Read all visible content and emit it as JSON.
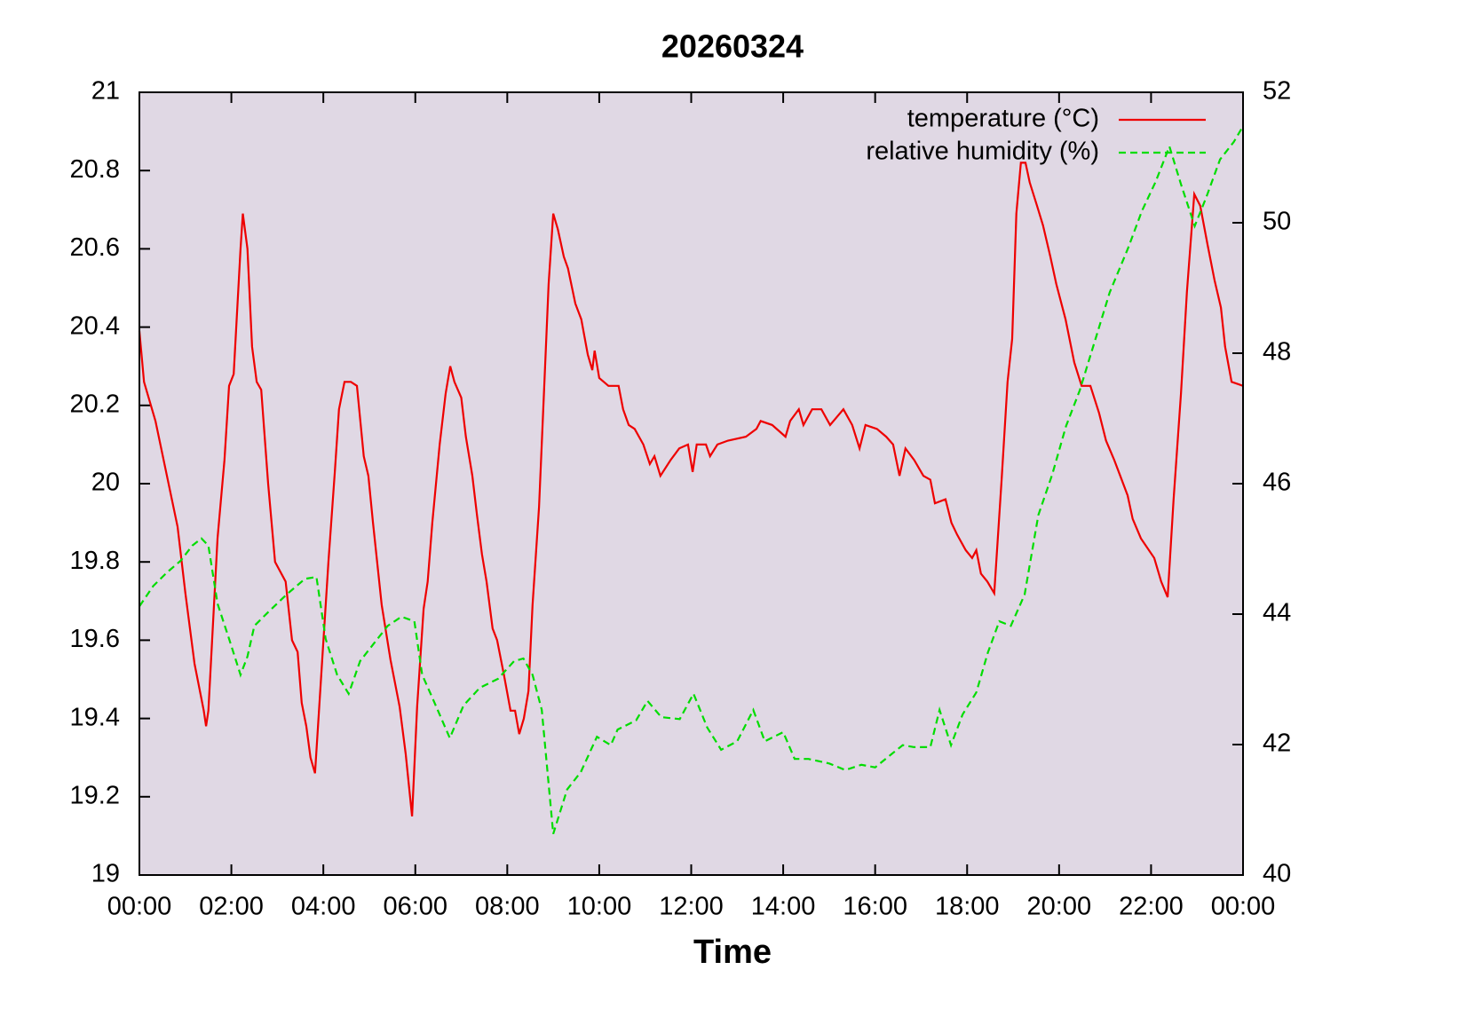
{
  "chart_data": {
    "type": "line",
    "title": "20260324",
    "xlabel": "Time",
    "xlim": [
      0,
      24
    ],
    "xticks": [
      {
        "value": 0,
        "label": "00:00"
      },
      {
        "value": 2,
        "label": "02:00"
      },
      {
        "value": 4,
        "label": "04:00"
      },
      {
        "value": 6,
        "label": "06:00"
      },
      {
        "value": 8,
        "label": "08:00"
      },
      {
        "value": 10,
        "label": "10:00"
      },
      {
        "value": 12,
        "label": "12:00"
      },
      {
        "value": 14,
        "label": "14:00"
      },
      {
        "value": 16,
        "label": "16:00"
      },
      {
        "value": 18,
        "label": "18:00"
      },
      {
        "value": 20,
        "label": "20:00"
      },
      {
        "value": 22,
        "label": "22:00"
      },
      {
        "value": 24,
        "label": "00:00"
      }
    ],
    "ylim": [
      19,
      21
    ],
    "yticks": [
      19,
      19.2,
      19.4,
      19.6,
      19.8,
      20,
      20.2,
      20.4,
      20.6,
      20.8,
      21
    ],
    "y2lim": [
      40,
      52
    ],
    "y2ticks": [
      40,
      42,
      44,
      46,
      48,
      50,
      52
    ],
    "legend": "top right",
    "background": "#e0d8e4",
    "series": [
      {
        "name": "temperature (°C)",
        "color": "#ee0000",
        "dash": false,
        "x": [
          0,
          0.1,
          0.35,
          0.83,
          1.0,
          1.2,
          1.4,
          1.45,
          1.5,
          1.7,
          1.85,
          1.95,
          2.05,
          2.2,
          2.25,
          2.35,
          2.45,
          2.55,
          2.65,
          2.8,
          2.95,
          3.18,
          3.32,
          3.44,
          3.53,
          3.63,
          3.72,
          3.82,
          4.11,
          4.25,
          4.34,
          4.46,
          4.6,
          4.73,
          4.88,
          4.98,
          5.08,
          5.27,
          5.46,
          5.66,
          5.79,
          5.93,
          6.04,
          6.18,
          6.27,
          6.37,
          6.53,
          6.66,
          6.76,
          6.85,
          7.0,
          7.1,
          7.24,
          7.34,
          7.45,
          7.55,
          7.68,
          7.78,
          7.93,
          8.07,
          8.17,
          8.26,
          8.36,
          8.46,
          8.55,
          8.69,
          8.8,
          8.9,
          9.0,
          9.1,
          9.23,
          9.32,
          9.48,
          9.61,
          9.75,
          9.85,
          9.9,
          10.0,
          10.2,
          10.42,
          10.52,
          10.64,
          10.77,
          10.96,
          11.1,
          11.2,
          11.33,
          11.55,
          11.74,
          11.93,
          12.03,
          12.12,
          12.32,
          12.41,
          12.57,
          12.8,
          13.19,
          13.42,
          13.51,
          13.76,
          14.05,
          14.15,
          14.34,
          14.44,
          14.63,
          14.83,
          15.02,
          15.31,
          15.5,
          15.66,
          15.79,
          16.04,
          16.24,
          16.39,
          16.53,
          16.66,
          16.85,
          17.05,
          17.2,
          17.3,
          17.53,
          17.66,
          17.78,
          17.97,
          18.11,
          18.2,
          18.3,
          18.44,
          18.59,
          18.75,
          18.88,
          18.98,
          19.07,
          19.17,
          19.27,
          19.36,
          19.52,
          19.65,
          19.81,
          19.94,
          20.14,
          20.33,
          20.49,
          20.68,
          20.87,
          21.02,
          21.2,
          21.33,
          21.49,
          21.6,
          21.78,
          22.07,
          22.22,
          22.36,
          22.49,
          22.65,
          22.78,
          22.94,
          23.07,
          23.23,
          23.38,
          23.52,
          23.61,
          23.75,
          24.0
        ],
        "values": [
          20.39,
          20.26,
          20.16,
          19.89,
          19.72,
          19.54,
          19.42,
          19.38,
          19.42,
          19.86,
          20.06,
          20.25,
          20.28,
          20.6,
          20.69,
          20.6,
          20.35,
          20.26,
          20.24,
          20.0,
          19.8,
          19.75,
          19.6,
          19.57,
          19.44,
          19.38,
          19.3,
          19.26,
          19.8,
          20.03,
          20.19,
          20.26,
          20.26,
          20.25,
          20.07,
          20.02,
          19.9,
          19.69,
          19.55,
          19.43,
          19.31,
          19.15,
          19.43,
          19.68,
          19.75,
          19.9,
          20.1,
          20.23,
          20.3,
          20.26,
          20.22,
          20.12,
          20.02,
          19.92,
          19.82,
          19.75,
          19.63,
          19.6,
          19.51,
          19.42,
          19.42,
          19.36,
          19.4,
          19.47,
          19.69,
          19.94,
          20.24,
          20.51,
          20.69,
          20.65,
          20.58,
          20.55,
          20.46,
          20.42,
          20.33,
          20.29,
          20.34,
          20.27,
          20.25,
          20.25,
          20.19,
          20.15,
          20.14,
          20.1,
          20.05,
          20.07,
          20.02,
          20.06,
          20.09,
          20.1,
          20.03,
          20.1,
          20.1,
          20.07,
          20.1,
          20.11,
          20.12,
          20.14,
          20.16,
          20.15,
          20.12,
          20.16,
          20.19,
          20.15,
          20.19,
          20.19,
          20.15,
          20.19,
          20.15,
          20.09,
          20.15,
          20.14,
          20.12,
          20.1,
          20.02,
          20.09,
          20.06,
          20.02,
          20.01,
          19.95,
          19.96,
          19.9,
          19.87,
          19.83,
          19.81,
          19.83,
          19.77,
          19.75,
          19.72,
          20.01,
          20.26,
          20.37,
          20.69,
          20.82,
          20.82,
          20.77,
          20.71,
          20.66,
          20.58,
          20.51,
          20.42,
          20.31,
          20.25,
          20.25,
          20.18,
          20.11,
          20.06,
          20.02,
          19.97,
          19.91,
          19.86,
          19.81,
          19.75,
          19.71,
          19.96,
          20.23,
          20.49,
          20.74,
          20.71,
          20.61,
          20.52,
          20.45,
          20.35,
          20.26,
          20.25
        ]
      },
      {
        "name": "relative humidity (%)",
        "color": "#00dd00",
        "dash": true,
        "axis": "y2",
        "x": [
          0,
          0.3,
          0.6,
          0.9,
          1.15,
          1.35,
          1.5,
          1.7,
          1.95,
          2.2,
          2.35,
          2.5,
          2.8,
          3.2,
          3.6,
          3.85,
          4.05,
          4.3,
          4.55,
          4.8,
          5.1,
          5.4,
          5.7,
          5.98,
          6.15,
          6.4,
          6.75,
          7.05,
          7.4,
          7.8,
          8.15,
          8.35,
          8.55,
          8.75,
          9.0,
          9.3,
          9.6,
          9.95,
          10.25,
          10.4,
          10.8,
          11.05,
          11.35,
          11.75,
          12.05,
          12.35,
          12.65,
          13.0,
          13.35,
          13.6,
          14.0,
          14.25,
          14.55,
          15.0,
          15.35,
          15.7,
          16.0,
          16.35,
          16.6,
          16.85,
          17.2,
          17.4,
          17.65,
          17.9,
          18.2,
          18.45,
          18.7,
          18.95,
          19.25,
          19.55,
          19.85,
          20.15,
          20.45,
          20.8,
          21.1,
          21.5,
          21.8,
          22.1,
          22.4,
          22.65,
          22.95,
          23.2,
          23.5,
          23.8,
          24
        ],
        "values": [
          44.12,
          44.43,
          44.64,
          44.82,
          45.05,
          45.16,
          45.05,
          44.16,
          43.62,
          43.07,
          43.35,
          43.82,
          44.03,
          44.3,
          44.54,
          44.57,
          43.62,
          43.07,
          42.78,
          43.28,
          43.55,
          43.82,
          43.96,
          43.89,
          43.07,
          42.67,
          42.1,
          42.6,
          42.87,
          43.01,
          43.28,
          43.32,
          43.07,
          42.53,
          40.63,
          41.31,
          41.58,
          42.12,
          41.99,
          42.23,
          42.37,
          42.67,
          42.42,
          42.39,
          42.78,
          42.26,
          41.92,
          42.05,
          42.53,
          42.05,
          42.19,
          41.78,
          41.78,
          41.71,
          41.61,
          41.69,
          41.65,
          41.85,
          41.99,
          41.96,
          41.96,
          42.53,
          41.99,
          42.46,
          42.8,
          43.41,
          43.89,
          43.82,
          44.3,
          45.52,
          46.14,
          46.88,
          47.43,
          48.24,
          48.93,
          49.61,
          50.18,
          50.63,
          51.17,
          50.59,
          49.95,
          50.39,
          50.97,
          51.24,
          51.48
        ]
      }
    ]
  }
}
